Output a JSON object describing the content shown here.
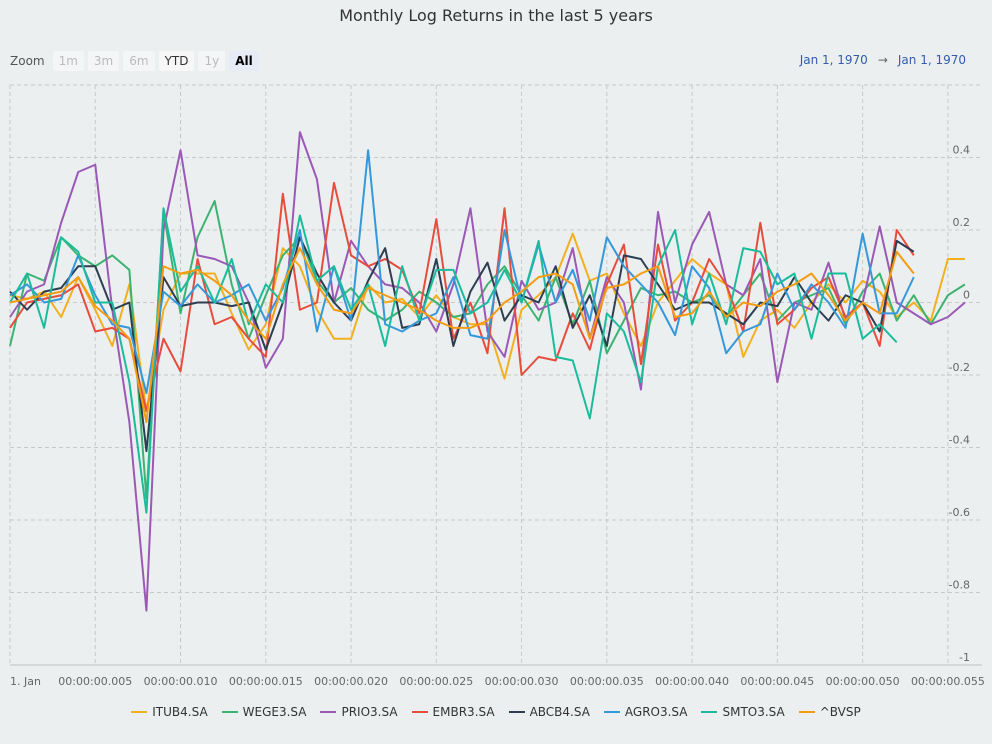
{
  "chart": {
    "title": "Monthly Log Returns in the last 5 years"
  },
  "toolbar": {
    "zoom_label": "Zoom",
    "buttons": [
      {
        "label": "1m",
        "state": "disabled"
      },
      {
        "label": "3m",
        "state": "disabled"
      },
      {
        "label": "6m",
        "state": "disabled"
      },
      {
        "label": "YTD",
        "state": "enabled"
      },
      {
        "label": "1y",
        "state": "disabled"
      },
      {
        "label": "All",
        "state": "selected"
      }
    ]
  },
  "range": {
    "from": "Jan 1, 1970",
    "arrow": "→",
    "to": "Jan 1, 1970"
  },
  "chart_data": {
    "type": "line",
    "x_start_label": "1. Jan",
    "x_tick_labels": [
      "00:00:00.005",
      "00:00:00.010",
      "00:00:00.015",
      "00:00:00.020",
      "00:00:00.025",
      "00:00:00.030",
      "00:00:00.035",
      "00:00:00.040",
      "00:00:00.045",
      "00:00:00.050",
      "00:00:00.055"
    ],
    "x_ticks": [
      0,
      5,
      10,
      15,
      20,
      25,
      30,
      35,
      40,
      45,
      50,
      55
    ],
    "xlim": [
      0,
      57
    ],
    "ylim": [
      -1,
      0.6
    ],
    "y_tick_values": [
      0.4,
      0.2,
      0,
      -0.2,
      -0.4,
      -0.6,
      -0.8,
      -1
    ],
    "y_tick_labels": [
      "0.4",
      "0.2",
      "0",
      "-0.2",
      "-0.4",
      "-0.6",
      "-0.8",
      "-1"
    ],
    "grid": true,
    "legend_position": "bottom-center",
    "series": [
      {
        "name": "ITUB4.SA",
        "color": "#f2b01e",
        "values": [
          0.02,
          0.01,
          0.03,
          -0.04,
          0.07,
          -0.02,
          -0.12,
          0.05,
          -0.3,
          -0.02,
          0.08,
          0.08,
          0.08,
          -0.03,
          -0.13,
          -0.06,
          0.15,
          0.1,
          -0.02,
          -0.1,
          -0.1,
          0.05,
          0.0,
          0.01,
          -0.04,
          0.02,
          -0.04,
          -0.06,
          -0.06,
          -0.21,
          -0.02,
          0.02,
          0.07,
          0.19,
          0.06,
          0.08,
          -0.03,
          -0.12,
          0.0,
          0.06,
          0.12,
          0.08,
          0.05,
          -0.15,
          -0.05,
          -0.02,
          -0.07,
          0.0,
          0.05,
          0.0,
          0.06,
          0.03,
          -0.04,
          0.0,
          -0.05,
          0.12,
          0.12
        ]
      },
      {
        "name": "WEGE3.SA",
        "color": "#3cb371",
        "values": [
          -0.12,
          0.08,
          0.06,
          0.18,
          0.13,
          0.1,
          0.13,
          0.09,
          -0.54,
          0.25,
          -0.03,
          0.18,
          0.28,
          0.05,
          -0.1,
          0.02,
          0.13,
          0.18,
          0.06,
          0.0,
          0.04,
          -0.02,
          -0.05,
          -0.02,
          0.03,
          0.0,
          -0.04,
          -0.03,
          0.05,
          0.1,
          0.02,
          -0.05,
          0.07,
          -0.06,
          0.06,
          -0.14,
          -0.05,
          0.04,
          0.02,
          0.03,
          0.0,
          0.02,
          -0.04,
          0.02,
          0.08,
          -0.05,
          0.0,
          0.02,
          0.04,
          -0.06,
          0.03,
          0.08,
          -0.05,
          0.02,
          -0.06,
          0.02,
          0.05
        ]
      },
      {
        "name": "PRIO3.SA",
        "color": "#9b59b6",
        "values": [
          -0.04,
          0.03,
          0.05,
          0.22,
          0.36,
          0.38,
          -0.02,
          -0.33,
          -0.85,
          0.2,
          0.42,
          0.13,
          0.12,
          0.1,
          0.0,
          -0.18,
          -0.1,
          0.47,
          0.34,
          0.0,
          0.17,
          0.1,
          0.05,
          0.04,
          0.0,
          -0.08,
          0.05,
          0.26,
          -0.08,
          -0.15,
          0.06,
          -0.02,
          0.0,
          0.15,
          -0.1,
          0.07,
          0.0,
          -0.24,
          0.25,
          0.0,
          0.16,
          0.25,
          0.05,
          0.02,
          0.12,
          -0.22,
          0.0,
          -0.02,
          0.11,
          -0.05,
          0.0,
          0.21,
          0.0,
          -0.03,
          -0.06,
          -0.04,
          0.0
        ]
      },
      {
        "name": "EMBR3.SA",
        "color": "#e74c3c",
        "values": [
          -0.07,
          0.0,
          0.01,
          0.02,
          0.05,
          -0.08,
          -0.07,
          -0.1,
          -0.3,
          -0.1,
          -0.19,
          0.12,
          -0.06,
          -0.04,
          -0.1,
          -0.15,
          0.3,
          -0.02,
          0.0,
          0.33,
          0.13,
          0.1,
          0.12,
          0.09,
          -0.03,
          0.23,
          -0.1,
          0.0,
          -0.14,
          0.26,
          -0.2,
          -0.15,
          -0.16,
          -0.03,
          -0.13,
          0.05,
          0.16,
          -0.17,
          0.16,
          -0.05,
          0.0,
          0.12,
          0.05,
          -0.08,
          0.22,
          -0.06,
          -0.02,
          0.04,
          0.07,
          -0.04,
          0.0,
          -0.12,
          0.2,
          0.13
        ]
      },
      {
        "name": "ABCB4.SA",
        "color": "#2c3e50",
        "values": [
          0.03,
          -0.02,
          0.03,
          0.04,
          0.1,
          0.1,
          -0.02,
          0.0,
          -0.41,
          0.07,
          -0.01,
          0.0,
          0.0,
          -0.01,
          0.0,
          -0.13,
          0.0,
          0.18,
          0.08,
          0.0,
          -0.05,
          0.06,
          0.15,
          -0.07,
          -0.06,
          0.12,
          -0.12,
          0.03,
          0.11,
          -0.05,
          0.02,
          0.0,
          0.1,
          -0.07,
          0.02,
          -0.12,
          0.13,
          0.12,
          0.05,
          -0.02,
          0.0,
          0.0,
          -0.03,
          -0.06,
          0.0,
          -0.01,
          0.07,
          0.0,
          -0.05,
          0.02,
          0.0,
          -0.08,
          0.17,
          0.14
        ]
      },
      {
        "name": "AGRO3.SA",
        "color": "#3498db",
        "values": [
          0.02,
          0.05,
          0.0,
          0.01,
          0.13,
          0.02,
          -0.06,
          -0.07,
          -0.25,
          0.03,
          -0.01,
          0.05,
          0.0,
          0.02,
          0.05,
          -0.05,
          0.04,
          0.2,
          -0.08,
          0.1,
          -0.05,
          0.42,
          -0.06,
          -0.08,
          -0.05,
          -0.03,
          0.07,
          -0.09,
          -0.1,
          0.2,
          0.0,
          0.16,
          0.0,
          0.09,
          -0.05,
          0.18,
          0.1,
          0.05,
          0.0,
          -0.09,
          0.1,
          0.04,
          -0.14,
          -0.08,
          -0.06,
          0.08,
          -0.02,
          0.05,
          0.0,
          -0.07,
          0.19,
          -0.03,
          -0.03,
          0.07
        ]
      },
      {
        "name": "SMTO3.SA",
        "color": "#1abc9c",
        "values": [
          0.0,
          0.08,
          -0.07,
          0.18,
          0.14,
          0.0,
          0.0,
          -0.22,
          -0.58,
          0.26,
          0.03,
          0.1,
          0.0,
          0.12,
          -0.06,
          0.05,
          0.0,
          0.24,
          0.06,
          0.1,
          -0.02,
          0.05,
          -0.12,
          0.1,
          -0.05,
          0.09,
          0.09,
          -0.03,
          0.0,
          0.09,
          0.0,
          0.17,
          -0.15,
          -0.16,
          -0.32,
          -0.03,
          -0.08,
          -0.22,
          0.1,
          0.2,
          -0.06,
          0.08,
          -0.06,
          0.15,
          0.14,
          0.05,
          0.08,
          -0.1,
          0.08,
          0.08,
          -0.1,
          -0.06,
          -0.11
        ]
      },
      {
        "name": "^BVSP",
        "color": "#f39c12",
        "values": [
          0.0,
          0.01,
          0.02,
          0.03,
          0.07,
          -0.01,
          -0.05,
          -0.1,
          -0.33,
          0.1,
          0.08,
          0.09,
          0.06,
          0.02,
          -0.05,
          -0.1,
          0.05,
          0.15,
          0.05,
          -0.02,
          -0.03,
          0.04,
          0.02,
          0.0,
          -0.02,
          -0.05,
          -0.07,
          -0.07,
          -0.05,
          0.0,
          0.03,
          0.07,
          0.08,
          0.05,
          -0.1,
          0.04,
          0.05,
          0.08,
          0.1,
          -0.04,
          -0.03,
          0.03,
          -0.04,
          0.0,
          -0.01,
          0.03,
          0.05,
          0.08,
          0.02,
          -0.05,
          0.0,
          -0.03,
          0.14,
          0.08
        ]
      }
    ]
  }
}
